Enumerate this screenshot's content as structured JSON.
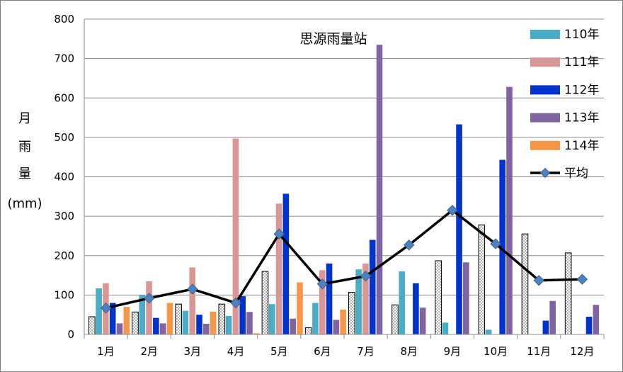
{
  "chart_data": {
    "type": "bar",
    "title": "思源雨量站",
    "ylabel_chars": [
      "月",
      "雨",
      "量",
      "(mm)"
    ],
    "ylim": [
      0,
      800
    ],
    "yticks": [
      0,
      100,
      200,
      300,
      400,
      500,
      600,
      700,
      800
    ],
    "grid": true,
    "legend_position": "right",
    "categories": [
      "1月",
      "2月",
      "3月",
      "4月",
      "5月",
      "6月",
      "7月",
      "8月",
      "9月",
      "10月",
      "11月",
      "12月"
    ],
    "series": [
      {
        "name": "110年",
        "kind": "bar",
        "color": "#ffffff",
        "pattern": "dotted",
        "values": [
          45,
          57,
          77,
          77,
          160,
          17,
          107,
          75,
          187,
          278,
          255,
          207
        ]
      },
      {
        "name": "110年",
        "kind": "bar",
        "color": "#4bacc6",
        "values": [
          117,
          100,
          60,
          47,
          77,
          80,
          165,
          160,
          30,
          12,
          null,
          null
        ]
      },
      {
        "name": "111年",
        "kind": "bar",
        "color": "#d99694",
        "values": [
          130,
          135,
          170,
          497,
          332,
          163,
          180,
          null,
          null,
          null,
          null,
          null
        ]
      },
      {
        "name": "112年",
        "kind": "bar",
        "color": "#0033cc",
        "values": [
          80,
          42,
          50,
          97,
          357,
          180,
          240,
          130,
          533,
          443,
          35,
          45
        ]
      },
      {
        "name": "113年",
        "kind": "bar",
        "color": "#8064a2",
        "values": [
          28,
          28,
          27,
          57,
          40,
          37,
          735,
          68,
          183,
          628,
          85,
          75
        ]
      },
      {
        "name": "114年",
        "kind": "bar",
        "color": "#f79646",
        "values": [
          70,
          80,
          58,
          3,
          132,
          63,
          null,
          null,
          null,
          null,
          null,
          null
        ]
      },
      {
        "name": "平均",
        "kind": "line",
        "color": "#000000",
        "marker_color": "#4f81bd",
        "values": [
          67,
          92,
          115,
          80,
          255,
          128,
          148,
          227,
          315,
          230,
          137,
          140
        ]
      }
    ]
  }
}
